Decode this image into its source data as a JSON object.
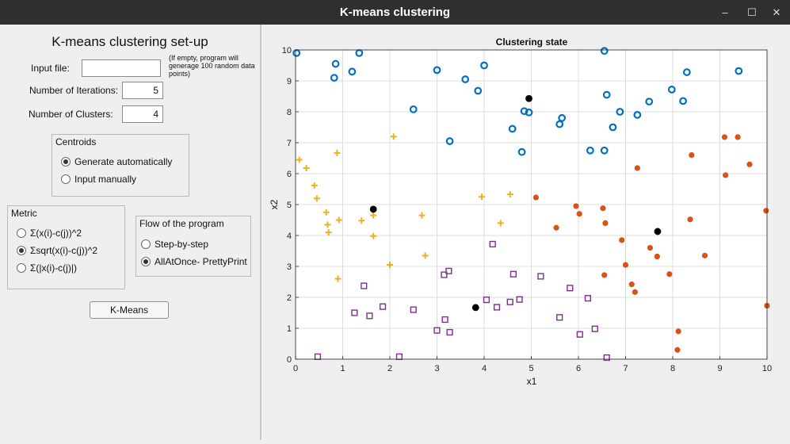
{
  "window": {
    "title": "K-means clustering",
    "controls": [
      "–",
      "☐",
      "✕"
    ]
  },
  "setup": {
    "heading": "K-means clustering set-up",
    "input_file_label": "Input file:",
    "input_file_value": "",
    "input_file_note": "(If empty, program will generage 100 random data points)",
    "iterations_label": "Number of Iterations:",
    "iterations_value": "5",
    "clusters_label": "Number of Clusters:",
    "clusters_value": "4"
  },
  "centroids_group": {
    "title": "Centroids",
    "options": [
      {
        "label": "Generate automatically",
        "selected": true
      },
      {
        "label": "Input manually",
        "selected": false
      }
    ]
  },
  "metric_group": {
    "title": "Metric",
    "options": [
      {
        "label": "Σ(x(i)-c(j))^2",
        "selected": false
      },
      {
        "label": "Σsqrt(x(i)-c(j))^2",
        "selected": true
      },
      {
        "label": "Σ(|x(i)-c(j)|)",
        "selected": false
      }
    ]
  },
  "flow_group": {
    "title": "Flow of the program",
    "options": [
      {
        "label": "Step-by-step",
        "selected": false
      },
      {
        "label": "AllAtOnce- PrettyPrint",
        "selected": true
      }
    ]
  },
  "run_button": "K-Means",
  "chart_data": {
    "type": "scatter",
    "title": "Clustering state",
    "xlabel": "x1",
    "ylabel": "x2",
    "xlim": [
      0,
      10
    ],
    "ylim": [
      0,
      10
    ],
    "xticks": [
      "0",
      "1",
      "2",
      "3",
      "4",
      "5",
      "6",
      "7",
      "8",
      "9",
      "10"
    ],
    "yticks": [
      "0",
      "1",
      "2",
      "3",
      "4",
      "5",
      "6",
      "7",
      "8",
      "9",
      "10"
    ],
    "grid": true,
    "series": [
      {
        "marker": "circle-open",
        "color": "#0072bd",
        "points": [
          [
            0.02,
            9.9
          ],
          [
            0.85,
            9.55
          ],
          [
            0.82,
            9.1
          ],
          [
            1.35,
            9.9
          ],
          [
            1.2,
            9.3
          ],
          [
            2.5,
            8.08
          ],
          [
            3.0,
            9.35
          ],
          [
            3.6,
            9.05
          ],
          [
            3.87,
            8.68
          ],
          [
            4.0,
            9.5
          ],
          [
            3.27,
            7.05
          ],
          [
            4.6,
            7.45
          ],
          [
            4.8,
            6.7
          ],
          [
            4.85,
            8.02
          ],
          [
            4.95,
            7.98
          ],
          [
            5.6,
            7.6
          ],
          [
            5.65,
            7.8
          ],
          [
            6.55,
            9.97
          ],
          [
            6.6,
            8.55
          ],
          [
            6.25,
            6.75
          ],
          [
            6.55,
            6.75
          ],
          [
            6.73,
            7.5
          ],
          [
            6.88,
            8.0
          ],
          [
            7.25,
            7.9
          ],
          [
            7.5,
            8.33
          ],
          [
            7.98,
            8.72
          ],
          [
            8.22,
            8.35
          ],
          [
            8.3,
            9.28
          ],
          [
            9.4,
            9.32
          ]
        ]
      },
      {
        "marker": "plus",
        "color": "#edb120",
        "points": [
          [
            0.08,
            6.45
          ],
          [
            0.23,
            6.18
          ],
          [
            0.4,
            5.62
          ],
          [
            0.45,
            5.2
          ],
          [
            0.65,
            4.75
          ],
          [
            0.68,
            4.35
          ],
          [
            0.7,
            4.1
          ],
          [
            0.88,
            6.67
          ],
          [
            0.92,
            4.5
          ],
          [
            0.9,
            2.6
          ],
          [
            1.4,
            4.48
          ],
          [
            1.65,
            4.65
          ],
          [
            1.65,
            3.98
          ],
          [
            2.0,
            3.05
          ],
          [
            2.08,
            7.2
          ],
          [
            2.68,
            4.65
          ],
          [
            2.75,
            3.35
          ],
          [
            3.95,
            5.25
          ],
          [
            4.35,
            4.4
          ],
          [
            4.55,
            5.33
          ]
        ]
      },
      {
        "marker": "dot",
        "color": "#d95319",
        "points": [
          [
            5.1,
            5.23
          ],
          [
            5.53,
            4.25
          ],
          [
            5.95,
            4.95
          ],
          [
            6.02,
            4.7
          ],
          [
            6.52,
            4.88
          ],
          [
            6.57,
            4.4
          ],
          [
            6.55,
            2.72
          ],
          [
            6.92,
            3.85
          ],
          [
            7.0,
            3.05
          ],
          [
            7.13,
            2.42
          ],
          [
            7.2,
            2.17
          ],
          [
            7.25,
            6.18
          ],
          [
            7.52,
            3.6
          ],
          [
            7.67,
            3.32
          ],
          [
            7.93,
            2.75
          ],
          [
            8.1,
            0.3
          ],
          [
            8.12,
            0.9
          ],
          [
            8.4,
            6.6
          ],
          [
            8.37,
            4.52
          ],
          [
            8.68,
            3.35
          ],
          [
            9.1,
            7.18
          ],
          [
            9.12,
            5.95
          ],
          [
            9.38,
            7.18
          ],
          [
            9.63,
            6.3
          ],
          [
            9.98,
            4.8
          ],
          [
            10.0,
            1.73
          ]
        ]
      },
      {
        "marker": "square-open",
        "color": "#7e2f8e",
        "points": [
          [
            0.47,
            0.08
          ],
          [
            1.25,
            1.5
          ],
          [
            1.45,
            2.37
          ],
          [
            1.57,
            1.4
          ],
          [
            1.85,
            1.7
          ],
          [
            2.2,
            0.08
          ],
          [
            2.5,
            1.6
          ],
          [
            3.0,
            0.93
          ],
          [
            3.15,
            2.73
          ],
          [
            3.17,
            1.28
          ],
          [
            3.25,
            2.85
          ],
          [
            3.27,
            0.87
          ],
          [
            4.05,
            1.92
          ],
          [
            4.18,
            3.72
          ],
          [
            4.27,
            1.68
          ],
          [
            4.55,
            1.85
          ],
          [
            4.62,
            2.75
          ],
          [
            4.75,
            1.93
          ],
          [
            5.2,
            2.68
          ],
          [
            5.6,
            1.35
          ],
          [
            5.82,
            2.3
          ],
          [
            6.03,
            0.8
          ],
          [
            6.2,
            1.97
          ],
          [
            6.35,
            0.98
          ],
          [
            6.6,
            0.05
          ]
        ]
      },
      {
        "marker": "centroid",
        "color": "#000000",
        "points": [
          [
            1.65,
            4.85
          ],
          [
            3.82,
            1.67
          ],
          [
            4.95,
            8.43
          ],
          [
            7.68,
            4.13
          ]
        ]
      }
    ]
  }
}
